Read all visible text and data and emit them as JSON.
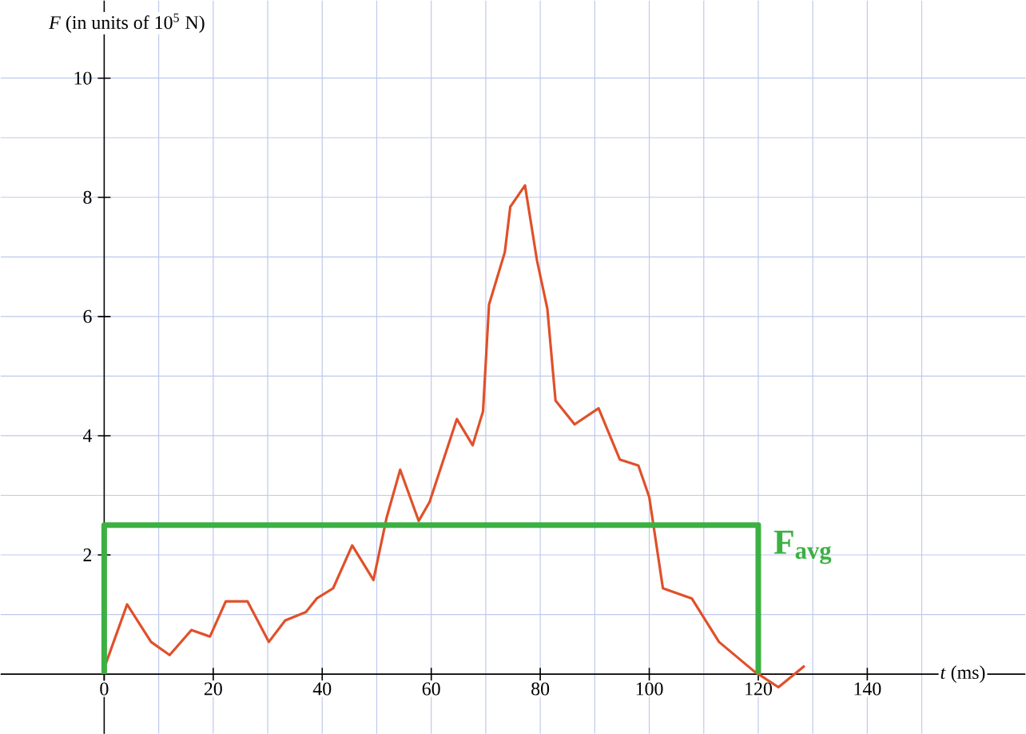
{
  "chart_data": {
    "type": "line",
    "xlabel": "*t* (ms)",
    "ylabel": "*F* (in units of 10$^{5}$ N)",
    "xlim": [
      -19,
      169
    ],
    "ylim": [
      -1,
      11.3
    ],
    "xticks": [
      0,
      {
        "value": 10,
        "label": null
      },
      20,
      {
        "value": 30,
        "label": null
      },
      40,
      {
        "value": 50,
        "label": null
      },
      60,
      {
        "value": 70,
        "label": null
      },
      80,
      {
        "value": 90,
        "label": null
      },
      100,
      {
        "value": 110,
        "label": null
      },
      120,
      {
        "value": 130,
        "label": null
      },
      140,
      {
        "value": 150,
        "label": null
      }
    ],
    "yticks": [
      {
        "value": 1,
        "label": null
      },
      2,
      {
        "value": 3,
        "label": null
      },
      4,
      {
        "value": 5,
        "label": null
      },
      6,
      {
        "value": 7,
        "label": null
      },
      8,
      {
        "value": 9,
        "label": null
      },
      10
    ],
    "grid": true,
    "line_style": "solid",
    "marker": "none",
    "series": [
      {
        "color": "#e0502a",
        "x": [
          0,
          4.2,
          8.6,
          12,
          16,
          19.4,
          22.3,
          26.3,
          30.2,
          33.2,
          37,
          39,
          42,
          45.5,
          49.4,
          51.8,
          54.3,
          57.7,
          59.7,
          64.7,
          67.6,
          69.5,
          70.6,
          73.5,
          74.5,
          77.2,
          79.4,
          81.3,
          82.8,
          86.3,
          90.7,
          94.6,
          98,
          100,
          102.5,
          107.8,
          112.8,
          119.2,
          123.7,
          128.5
        ],
        "values": [
          0.1,
          1.17,
          0.54,
          0.32,
          0.74,
          0.63,
          1.22,
          1.22,
          0.54,
          0.9,
          1.04,
          1.27,
          1.44,
          2.16,
          1.58,
          2.62,
          3.43,
          2.57,
          2.89,
          4.28,
          3.84,
          4.41,
          6.2,
          7.08,
          7.84,
          8.2,
          6.94,
          6.13,
          4.59,
          4.19,
          4.46,
          3.6,
          3.5,
          2.97,
          1.44,
          1.27,
          0.54,
          0.05,
          -0.22,
          0.14
        ]
      },
      {
        "name": "**F$_{avg}$**",
        "color": "#3cb043",
        "x": [
          0,
          0,
          120,
          120
        ],
        "values": [
          0,
          2.5,
          2.5,
          0
        ]
      }
    ]
  }
}
